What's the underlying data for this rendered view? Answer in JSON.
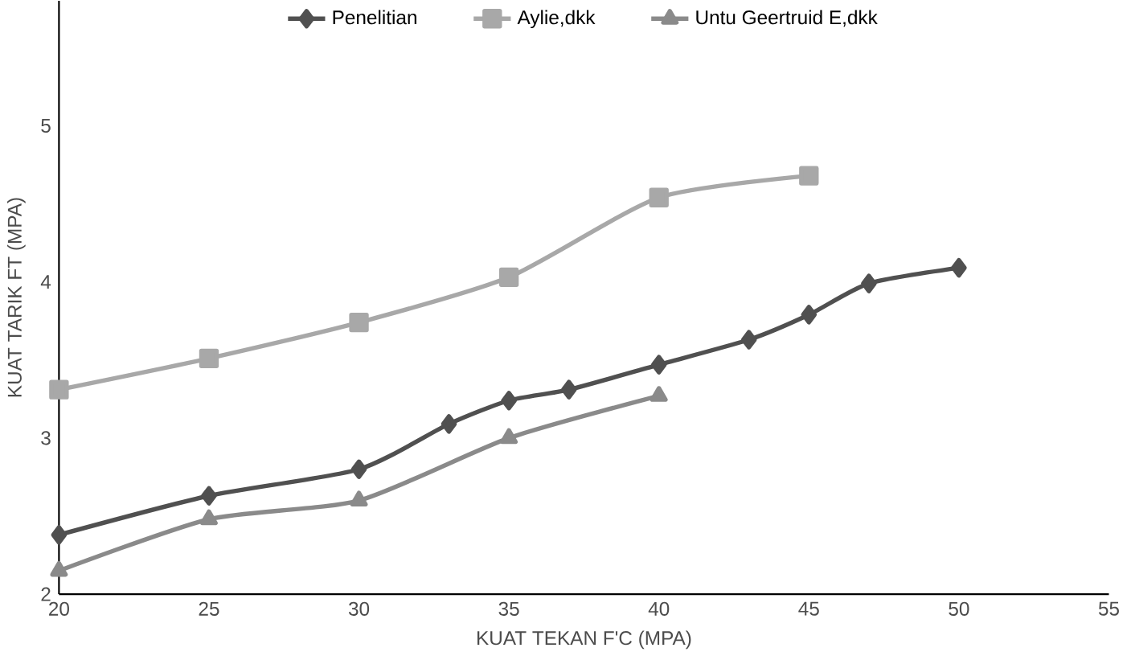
{
  "chart_data": {
    "type": "line",
    "xlabel": "KUAT TEKAN F'C (MPA)",
    "ylabel": "KUAT TARIK FT (MPA)",
    "xlim": [
      20,
      55
    ],
    "xticks": [
      20,
      25,
      30,
      35,
      40,
      45,
      50,
      55
    ],
    "ylim": [
      2,
      5.8
    ],
    "yticks": [
      2,
      3,
      4,
      5
    ],
    "legend": "top",
    "grid": false,
    "series": [
      {
        "name": "Penelitian",
        "color": "#505050",
        "marker": "diamond",
        "x": [
          20,
          25,
          30,
          33,
          35,
          37,
          40,
          43,
          45,
          47,
          50
        ],
        "values": [
          2.38,
          2.63,
          2.8,
          3.09,
          3.24,
          3.31,
          3.47,
          3.63,
          3.79,
          3.99,
          4.09
        ]
      },
      {
        "name": "Aylie,dkk",
        "color": "#a8a8a8",
        "marker": "square",
        "x": [
          20,
          25,
          30,
          35,
          40,
          45
        ],
        "values": [
          3.31,
          3.51,
          3.74,
          4.03,
          4.54,
          4.68
        ]
      },
      {
        "name": "Untu Geertruid E,dkk",
        "color": "#8a8a8a",
        "marker": "triangle",
        "x": [
          20,
          25,
          30,
          35,
          40
        ],
        "values": [
          2.15,
          2.48,
          2.6,
          3.0,
          3.27
        ]
      }
    ]
  }
}
